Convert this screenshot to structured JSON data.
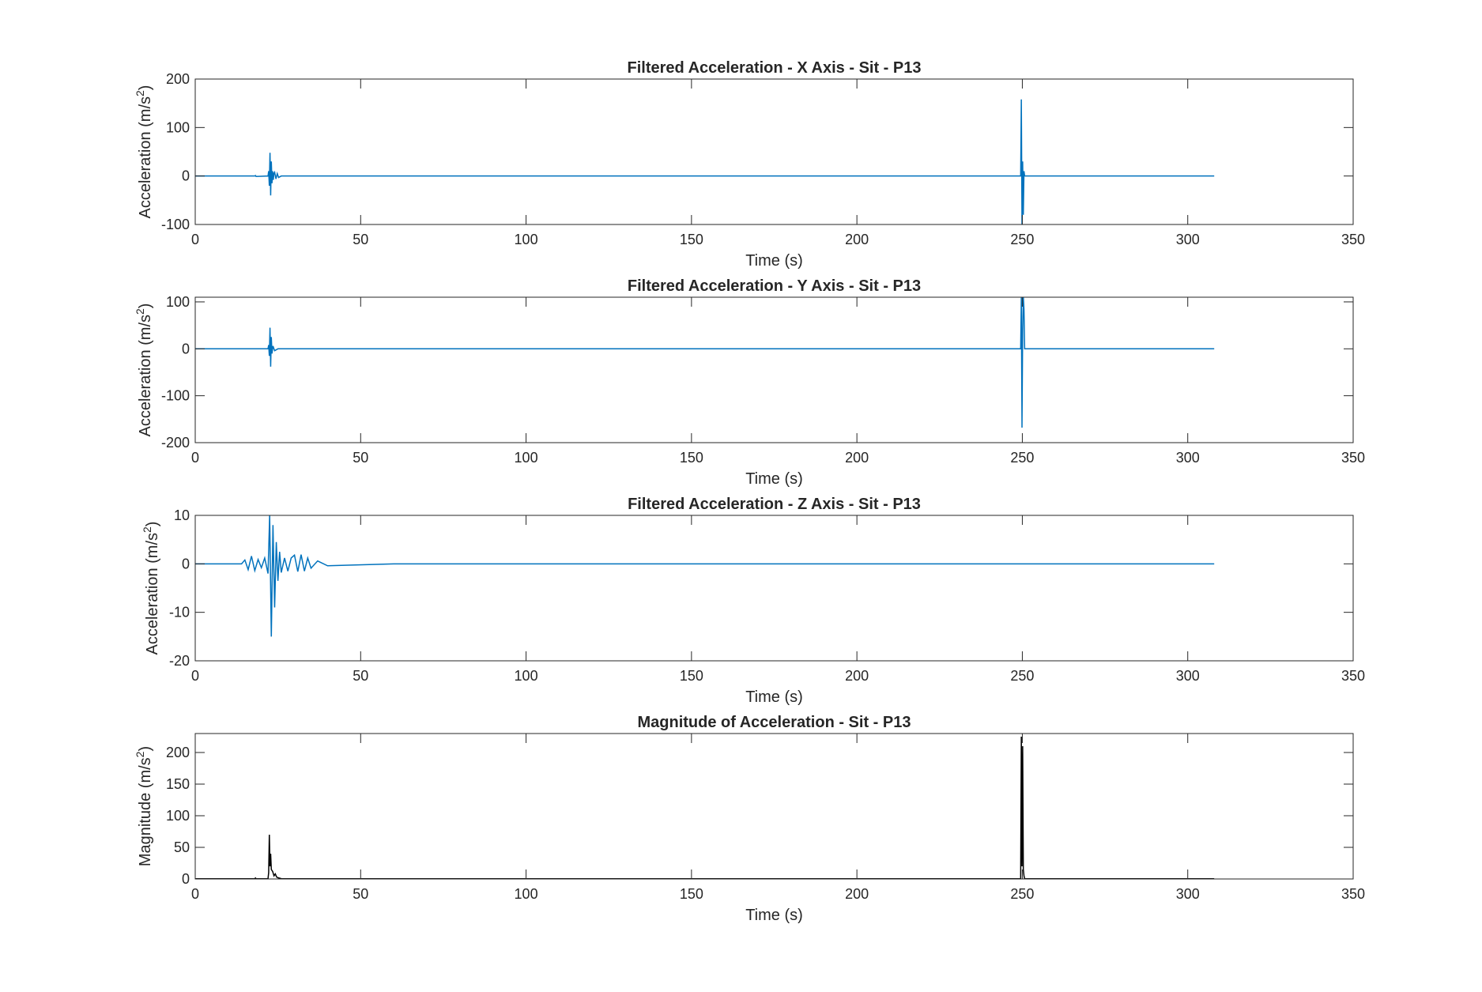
{
  "figure": {
    "background": "#ffffff"
  },
  "chart_data": [
    {
      "type": "line",
      "title": "Filtered Acceleration - X Axis - Sit - P13",
      "xlabel": "Time (s)",
      "ylabel": "Acceleration (m/s",
      "ylabel_superscript": "2",
      "ylabel_close": ")",
      "xlim": [
        0,
        350
      ],
      "ylim": [
        -100,
        200
      ],
      "xticks": [
        0,
        50,
        100,
        150,
        200,
        250,
        300,
        350
      ],
      "yticks": [
        -100,
        0,
        100,
        200
      ],
      "grid": false,
      "line_color": "#0072BD",
      "series": [
        {
          "x": [
            0,
            18,
            18.2,
            18.4,
            22,
            22.2,
            22.4,
            22.6,
            22.8,
            23,
            23.2,
            23.4,
            23.6,
            23.8,
            24,
            24.4,
            24.8,
            25.2,
            26,
            30,
            100,
            200,
            249.5,
            249.7,
            249.9,
            250.1,
            250.3,
            250.5,
            250.7,
            251,
            280,
            308
          ],
          "y": [
            0,
            0,
            1,
            -1,
            0,
            10,
            -20,
            48,
            -40,
            30,
            -15,
            10,
            -8,
            6,
            8,
            -6,
            5,
            -3,
            0,
            0,
            0,
            0,
            0,
            158,
            -100,
            30,
            -80,
            10,
            0,
            0,
            0,
            0
          ]
        }
      ]
    },
    {
      "type": "line",
      "title": "Filtered Acceleration - Y Axis - Sit - P13",
      "xlabel": "Time (s)",
      "ylabel": "Acceleration (m/s",
      "ylabel_superscript": "2",
      "ylabel_close": ")",
      "xlim": [
        0,
        350
      ],
      "ylim": [
        -200,
        110
      ],
      "xticks": [
        0,
        50,
        100,
        150,
        200,
        250,
        300,
        350
      ],
      "yticks": [
        -200,
        -100,
        0,
        100
      ],
      "grid": false,
      "line_color": "#0072BD",
      "series": [
        {
          "x": [
            0,
            20,
            22,
            22.2,
            22.4,
            22.6,
            22.8,
            23,
            23.2,
            23.5,
            24,
            25,
            30,
            100,
            200,
            249.5,
            249.7,
            249.9,
            250.1,
            250.3,
            250.5,
            250.7,
            251,
            280,
            308
          ],
          "y": [
            0,
            0,
            0,
            8,
            -15,
            45,
            -38,
            25,
            -10,
            6,
            -4,
            0,
            0,
            0,
            0,
            0,
            110,
            -168,
            40,
            110,
            85,
            0,
            0,
            0,
            0
          ]
        }
      ]
    },
    {
      "type": "line",
      "title": "Filtered Acceleration - Z Axis - Sit - P13",
      "xlabel": "Time (s)",
      "ylabel": "Acceleration (m/s",
      "ylabel_superscript": "2",
      "ylabel_close": ")",
      "xlim": [
        0,
        350
      ],
      "ylim": [
        -20,
        10
      ],
      "xticks": [
        0,
        50,
        100,
        150,
        200,
        250,
        300,
        350
      ],
      "yticks": [
        -20,
        -10,
        0,
        10
      ],
      "grid": false,
      "line_color": "#0072BD",
      "series": [
        {
          "x": [
            0,
            14,
            15,
            16,
            17,
            18,
            19,
            20,
            21,
            22,
            22.5,
            23,
            23.5,
            24,
            24.5,
            25,
            25.5,
            26,
            27,
            28,
            29,
            30,
            31,
            32,
            33,
            34,
            35,
            37,
            40,
            60,
            100,
            150,
            200,
            250,
            300,
            308
          ],
          "y": [
            0,
            0,
            0.8,
            -1.2,
            1.6,
            -1.4,
            0.9,
            -0.8,
            1.2,
            -2,
            10,
            -15,
            8,
            -9,
            4.5,
            -3.5,
            2.5,
            -1.8,
            1.2,
            -1.5,
            1.2,
            1.8,
            -1.6,
            1.9,
            -1.5,
            1.2,
            -0.9,
            0.6,
            -0.4,
            0,
            0,
            0,
            0,
            0,
            0,
            0
          ]
        }
      ]
    },
    {
      "type": "line",
      "title": "Magnitude of Acceleration - Sit - P13",
      "xlabel": "Time (s)",
      "ylabel": "Magnitude (m/s",
      "ylabel_superscript": "2",
      "ylabel_close": ")",
      "xlim": [
        0,
        350
      ],
      "ylim": [
        0,
        230
      ],
      "xticks": [
        0,
        50,
        100,
        150,
        200,
        250,
        300,
        350
      ],
      "yticks": [
        0,
        50,
        100,
        150,
        200
      ],
      "grid": false,
      "line_color": "#000000",
      "series": [
        {
          "x": [
            0,
            18,
            18.2,
            18.4,
            22,
            22.2,
            22.4,
            22.6,
            22.8,
            23,
            23.4,
            23.8,
            24.2,
            24.6,
            25,
            26,
            30,
            100,
            200,
            249.5,
            249.7,
            249.9,
            250.1,
            250.3,
            250.5,
            250.7,
            251,
            280,
            308
          ],
          "y": [
            0.3,
            0.3,
            1.5,
            0.3,
            0.5,
            10,
            70,
            20,
            40,
            15,
            12,
            5,
            8,
            3,
            2,
            0.5,
            0.3,
            0.3,
            0.3,
            0.3,
            225,
            20,
            210,
            15,
            5,
            0.3,
            0.3,
            0.3,
            0.3
          ]
        }
      ]
    }
  ]
}
